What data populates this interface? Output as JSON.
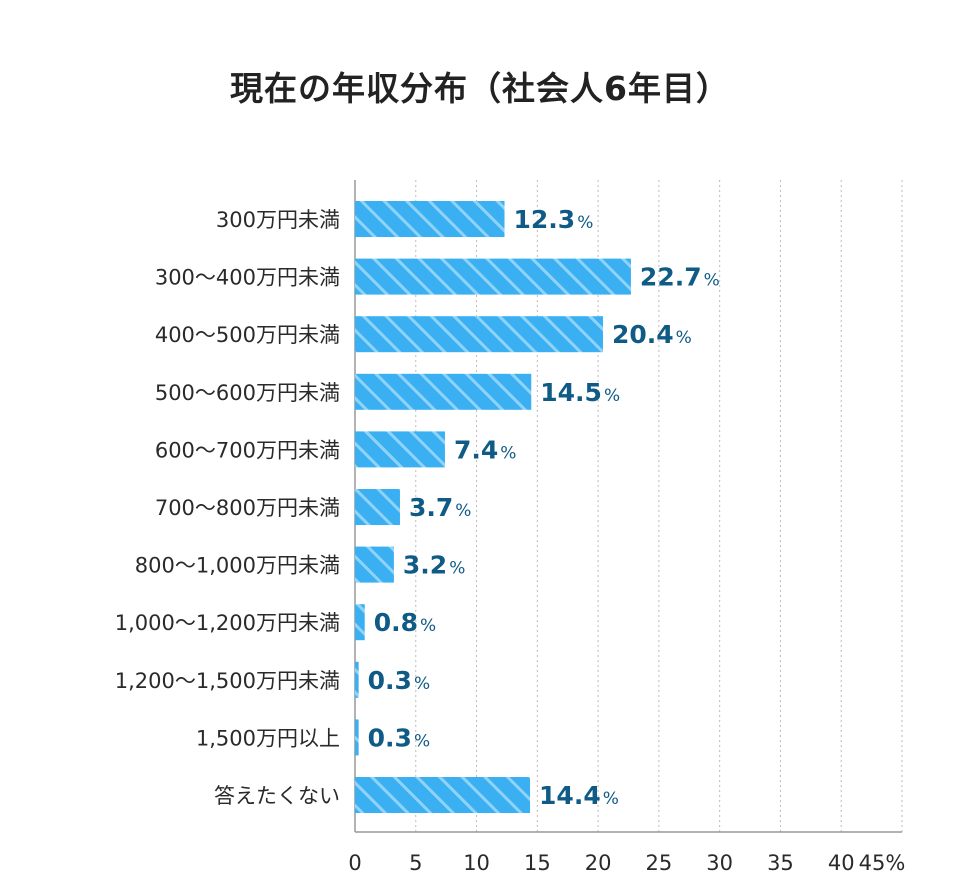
{
  "chart_data": {
    "type": "bar",
    "orientation": "horizontal",
    "title": "現在の年収分布（社会人6年目）",
    "categories": [
      "300万円未満",
      "300〜400万円未満",
      "400〜500万円未満",
      "500〜600万円未満",
      "600〜700万円未満",
      "700〜800万円未満",
      "800〜1,000万円未満",
      "1,000〜1,200万円未満",
      "1,200〜1,500万円未満",
      "1,500万円以上",
      "答えたくない"
    ],
    "values": [
      12.3,
      22.7,
      20.4,
      14.5,
      7.4,
      3.7,
      3.2,
      0.8,
      0.3,
      0.3,
      14.4
    ],
    "value_suffix": "%",
    "xlim": [
      0,
      45
    ],
    "x_ticks": [
      "0",
      "5",
      "10",
      "15",
      "20",
      "25",
      "30",
      "35",
      "40",
      "45%"
    ],
    "grid": "vertical-dotted",
    "legend": "none",
    "colors": {
      "bar": "#3ab0f2",
      "bar_hatch": "#8fd3f9",
      "value_label": "#0f5b86",
      "grid": "#bbbbbb",
      "axis": "#999999"
    }
  }
}
